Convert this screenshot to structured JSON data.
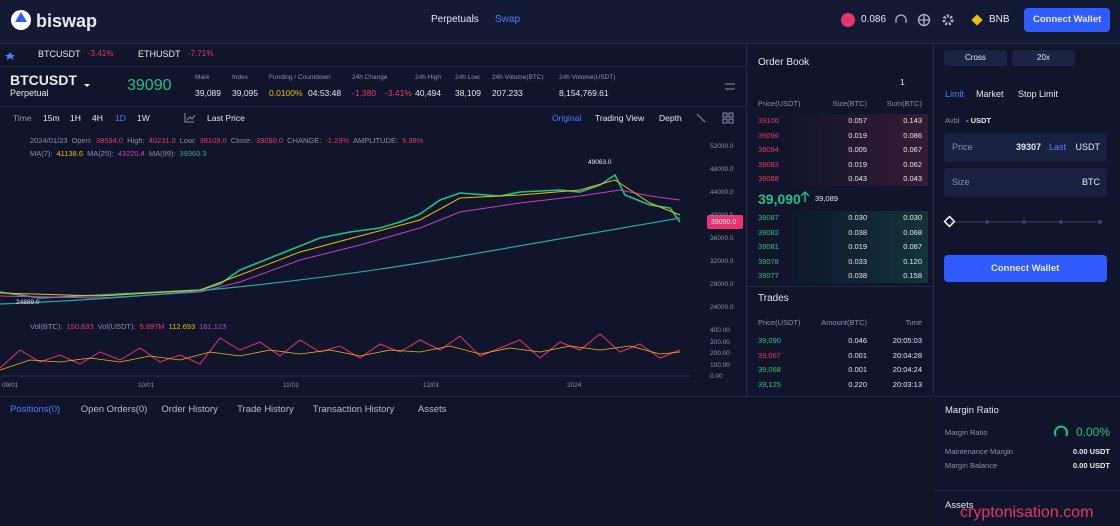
{
  "nav": {
    "brand": "biswap",
    "links": [
      "Perpetuals",
      "Swap"
    ],
    "token_price": "0.086",
    "network": "BNB",
    "connect": "Connect Wallet"
  },
  "tickers": [
    {
      "symbol": "BTCUSDT",
      "change": "-3.41%"
    },
    {
      "symbol": "ETHUSDT",
      "change": "-7.71%"
    }
  ],
  "market": {
    "symbol": "BTCUSDT",
    "kind": "Perpetual",
    "price": "39090",
    "stats": [
      {
        "label": "Mark",
        "values": [
          "39,089"
        ]
      },
      {
        "label": "Index",
        "values": [
          "39,095"
        ]
      },
      {
        "label": "Funding / Countdown",
        "values": [
          "0.0100%",
          "04:53:48"
        ]
      },
      {
        "label": "24h Change",
        "values": [
          "-1,380",
          "-3.41%"
        ]
      },
      {
        "label": "24h High",
        "values": [
          "40,494"
        ]
      },
      {
        "label": "24h Low",
        "values": [
          "38,109"
        ]
      },
      {
        "label": "24h Volume(BTC)",
        "values": [
          "207.233"
        ]
      },
      {
        "label": "24h Volume(USDT)",
        "values": [
          "8,154,769.61"
        ]
      }
    ]
  },
  "toolbar": {
    "intervals": [
      "Time",
      "15m",
      "1H",
      "4H",
      "1D",
      "1W"
    ],
    "price_type": "Last Price",
    "views": [
      "Original",
      "Trading View",
      "Depth"
    ]
  },
  "chart": {
    "date": "2024/01/23",
    "ohlc": [
      {
        "label": "Open:",
        "value": "38594.0"
      },
      {
        "label": "High:",
        "value": "40231.0"
      },
      {
        "label": "Low:",
        "value": "38109.0"
      },
      {
        "label": "Close:",
        "value": "39090.0"
      },
      {
        "label": "CHANGE:",
        "value": "-1.29%"
      },
      {
        "label": "AMPLITUDE:",
        "value": "5.36%"
      }
    ],
    "ma": [
      {
        "label": "MA(7):",
        "value": "41138.6"
      },
      {
        "label": "MA(25):",
        "value": "43220.4"
      },
      {
        "label": "MA(99):",
        "value": "39360.3"
      }
    ],
    "price_axis": [
      "52000.0",
      "48000.0",
      "44000.0",
      "40000.0",
      "36000.0",
      "32000.0",
      "28000.0",
      "24000.0"
    ],
    "last": "39090.0",
    "high_mark": "49063.0",
    "low_mark": "24889.0",
    "volume": [
      {
        "label": "Vol(BTC):",
        "value": "150.633"
      },
      {
        "label": "Vol(USDT):",
        "value": "5.897M"
      },
      {
        "label": "",
        "value": "112.693"
      },
      {
        "label": "",
        "value": "161.123"
      }
    ],
    "volume_axis": [
      "400.00",
      "300.00",
      "200.00",
      "100.00",
      "0.00"
    ],
    "dates": [
      "09/01",
      "10/01",
      "11/01",
      "12/01",
      "2024"
    ]
  },
  "tabs": [
    "Positions(0)",
    "Open Orders(0)",
    "Order History",
    "Trade History",
    "Transaction History",
    "Assets"
  ],
  "order_book": {
    "title": "Order Book",
    "precision": "1",
    "headers": [
      "Price(USDT)",
      "Size(BTC)",
      "Sum(BTC)"
    ],
    "asks": [
      [
        "39100",
        "0.057",
        "0.143"
      ],
      [
        "39096",
        "0.019",
        "0.086"
      ],
      [
        "39094",
        "0.005",
        "0.067"
      ],
      [
        "39093",
        "0.019",
        "0.062"
      ],
      [
        "39088",
        "0.043",
        "0.043"
      ]
    ],
    "mid": "39,090",
    "mark": "39,089",
    "bids": [
      [
        "39087",
        "0.030",
        "0.030"
      ],
      [
        "39082",
        "0.038",
        "0.068"
      ],
      [
        "39081",
        "0.019",
        "0.087"
      ],
      [
        "39078",
        "0.033",
        "0.120"
      ],
      [
        "39077",
        "0.038",
        "0.158"
      ]
    ]
  },
  "trades": {
    "title": "Trades",
    "headers": [
      "Price(USDT)",
      "Amount(BTC)",
      "Time"
    ],
    "rows": [
      [
        "39,090",
        "0.046",
        "20:05:03"
      ],
      [
        "39,067",
        "0.001",
        "20:04:28"
      ],
      [
        "39,068",
        "0.001",
        "20:04:24"
      ],
      [
        "39,125",
        "0.220",
        "20:03:13"
      ]
    ]
  },
  "order_form": {
    "margin_mode": "Cross",
    "leverage": "20x",
    "types": [
      "Limit",
      "Market",
      "Stop Limit"
    ],
    "avbl_label": "Avbl",
    "avbl_value": "- USDT",
    "price_label": "Price",
    "price_value": "39307",
    "price_last": "Last",
    "price_unit": "USDT",
    "size_label": "Size",
    "size_unit": "BTC",
    "connect": "Connect Wallet"
  },
  "margin": {
    "title": "Margin Ratio",
    "rows": [
      {
        "label": "Margin Ratio",
        "value": "0.00%"
      },
      {
        "label": "Maintenance Margin",
        "value": "0.00 USDT"
      },
      {
        "label": "Margin Balance",
        "value": "0.00 USDT"
      }
    ]
  },
  "assets_title": "Assets",
  "watermark": "cryptonisation.com"
}
